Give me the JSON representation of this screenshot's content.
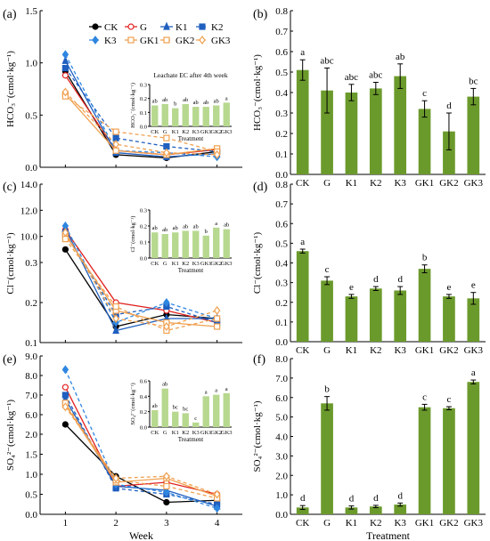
{
  "panel_letters": [
    "(a)",
    "(b)",
    "(c)",
    "(d)",
    "(e)",
    "(f)"
  ],
  "colors": {
    "CK": "#000000",
    "G": "#e0221f",
    "K1": "#1f5fbf",
    "K2": "#1f5fbf",
    "K3": "#2e86e0",
    "GK1": "#f0a050",
    "GK2": "#f0a050",
    "GK3": "#f0a050",
    "bar": "#6b9a2c",
    "inset_bar": "#b7d88f",
    "axis": "#000000"
  },
  "legend": [
    "CK",
    "G",
    "K1",
    "K2",
    "K3",
    "GK1",
    "GK2",
    "GK3"
  ],
  "inset_title_a": "Leachate EC after 4th week",
  "chart_data": [
    {
      "id": "a",
      "type": "line",
      "ylabel": "HCO₃⁻(cmol·kg⁻¹)",
      "x": [
        1,
        2,
        3,
        4
      ],
      "xlim": [
        0.5,
        4.5
      ],
      "ylim": [
        0,
        1.5
      ],
      "yticks": [
        "0.0",
        "0.5",
        "1.0",
        "1.5"
      ],
      "series": [
        {
          "name": "CK",
          "values": [
            0.92,
            0.12,
            0.09,
            0.15
          ]
        },
        {
          "name": "G",
          "values": [
            0.88,
            0.16,
            0.12,
            0.17
          ]
        },
        {
          "name": "K1",
          "values": [
            1.02,
            0.14,
            0.1,
            0.13
          ]
        },
        {
          "name": "K2",
          "values": [
            0.95,
            0.28,
            0.2,
            0.15
          ]
        },
        {
          "name": "K3",
          "values": [
            1.08,
            0.16,
            0.14,
            0.1
          ]
        },
        {
          "name": "GK1",
          "values": [
            0.7,
            0.16,
            0.12,
            0.18
          ]
        },
        {
          "name": "GK2",
          "values": [
            0.68,
            0.34,
            0.28,
            0.15
          ]
        },
        {
          "name": "GK3",
          "values": [
            0.72,
            0.22,
            0.14,
            0.12
          ]
        }
      ],
      "inset": {
        "title": "Leachate EC after 4th week",
        "ylabel": "HCO₃⁻(cmol·kg⁻¹)",
        "xlabel": "Treatment",
        "categories": [
          "CK",
          "G",
          "K1",
          "K2",
          "K3",
          "GK1",
          "GK2",
          "GK3"
        ],
        "values": [
          0.15,
          0.16,
          0.13,
          0.16,
          0.14,
          0.14,
          0.15,
          0.17
        ],
        "letters": [
          "ab",
          "ab",
          "b",
          "ab",
          "ab",
          "ab",
          "ab",
          "a"
        ],
        "ylim": [
          0,
          0.3
        ],
        "yticks": [
          "0.0",
          "0.1",
          "0.2",
          "0.3"
        ]
      }
    },
    {
      "id": "b",
      "type": "bar",
      "ylabel": "HCO₃⁻(cmol·kg⁻¹)",
      "categories": [
        "CK",
        "G",
        "K1",
        "K2",
        "K3",
        "GK1",
        "GK2",
        "GK3"
      ],
      "values": [
        0.51,
        0.41,
        0.4,
        0.42,
        0.48,
        0.32,
        0.21,
        0.38
      ],
      "errors": [
        0.05,
        0.11,
        0.04,
        0.03,
        0.06,
        0.04,
        0.09,
        0.04
      ],
      "letters": [
        "a",
        "abc",
        "abc",
        "abc",
        "ab",
        "c",
        "d",
        "bc"
      ],
      "ylim": [
        0,
        0.8
      ],
      "yticks": [
        "0.0",
        "0.1",
        "0.2",
        "0.3",
        "0.4",
        "0.5",
        "0.6",
        "0.7",
        "0.8"
      ]
    },
    {
      "id": "c",
      "type": "line",
      "ylabel": "Cl⁻(cmol·kg⁻¹)",
      "x": [
        1,
        2,
        3,
        4
      ],
      "xlim": [
        0.5,
        4.5
      ],
      "broken_axis": true,
      "upper": {
        "ylim": [
          8.0,
          14.0
        ],
        "yticks": [
          "8.0",
          "10.0",
          "12.0",
          "14.0"
        ]
      },
      "lower": {
        "ylim": [
          0.1,
          0.3
        ],
        "yticks": [
          "0.1",
          "0.2",
          "0.3"
        ]
      },
      "series": [
        {
          "name": "CK",
          "values": [
            9.0,
            0.14,
            0.17,
            0.16
          ]
        },
        {
          "name": "G",
          "values": [
            10.5,
            0.2,
            0.18,
            0.15
          ]
        },
        {
          "name": "K1",
          "values": [
            10.6,
            0.13,
            0.16,
            0.16
          ]
        },
        {
          "name": "K2",
          "values": [
            10.2,
            0.17,
            0.19,
            0.15
          ]
        },
        {
          "name": "K3",
          "values": [
            10.8,
            0.15,
            0.2,
            0.16
          ]
        },
        {
          "name": "GK1",
          "values": [
            10.1,
            0.18,
            0.15,
            0.14
          ]
        },
        {
          "name": "GK2",
          "values": [
            9.8,
            0.19,
            0.13,
            0.16
          ]
        },
        {
          "name": "GK3",
          "values": [
            10.3,
            0.16,
            0.14,
            0.18
          ]
        }
      ],
      "inset": {
        "ylabel": "Cl⁻(cmol·kg⁻¹)",
        "xlabel": "Treatment",
        "categories": [
          "CK",
          "G",
          "K1",
          "K2",
          "K3",
          "GK1",
          "GK2",
          "GK3"
        ],
        "values": [
          0.16,
          0.15,
          0.16,
          0.17,
          0.17,
          0.14,
          0.19,
          0.18
        ],
        "letters": [
          "ab",
          "ab",
          "ab",
          "ab",
          "ab",
          "b",
          "a",
          "ab"
        ],
        "ylim": [
          0,
          0.3
        ],
        "yticks": [
          "0.0",
          "0.1",
          "0.2",
          "0.3"
        ]
      }
    },
    {
      "id": "d",
      "type": "bar",
      "ylabel": "Cl⁻(cmol·kg⁻¹)",
      "categories": [
        "CK",
        "G",
        "K1",
        "K2",
        "K3",
        "GK1",
        "GK2",
        "GK3"
      ],
      "values": [
        0.46,
        0.31,
        0.23,
        0.27,
        0.26,
        0.37,
        0.23,
        0.22
      ],
      "errors": [
        0.01,
        0.02,
        0.01,
        0.01,
        0.02,
        0.02,
        0.01,
        0.03
      ],
      "letters": [
        "a",
        "c",
        "e",
        "d",
        "d",
        "b",
        "e",
        "e"
      ],
      "ylim": [
        0,
        0.8
      ],
      "yticks": [
        "0.0",
        "0.1",
        "0.2",
        "0.3",
        "0.4",
        "0.5",
        "0.6",
        "0.7",
        "0.8"
      ]
    },
    {
      "id": "e",
      "type": "line",
      "ylabel": "SO₄²⁻(cmol·kg⁻¹)",
      "xlabel": "Week",
      "x": [
        1,
        2,
        3,
        4
      ],
      "xlim": [
        0.5,
        4.5
      ],
      "xticks": [
        "1",
        "2",
        "3",
        "4"
      ],
      "broken_axis": true,
      "upper": {
        "ylim": [
          5.0,
          9.0
        ],
        "yticks": [
          "5.0",
          "6.0",
          "7.0",
          "8.0",
          "9.0"
        ]
      },
      "lower": {
        "ylim": [
          0.0,
          2.0
        ],
        "yticks": [
          "0.0",
          "0.5",
          "1.0",
          "1.5",
          "2.0"
        ]
      },
      "series": [
        {
          "name": "CK",
          "values": [
            5.5,
            0.95,
            0.3,
            0.35
          ]
        },
        {
          "name": "G",
          "values": [
            7.4,
            0.7,
            0.8,
            0.5
          ]
        },
        {
          "name": "K1",
          "values": [
            6.8,
            0.7,
            0.6,
            0.2
          ]
        },
        {
          "name": "K2",
          "values": [
            7.0,
            0.65,
            0.5,
            0.25
          ]
        },
        {
          "name": "K3",
          "values": [
            8.3,
            0.75,
            0.55,
            0.15
          ]
        },
        {
          "name": "GK1",
          "values": [
            6.5,
            0.8,
            0.9,
            0.45
          ]
        },
        {
          "name": "GK2",
          "values": [
            6.6,
            0.85,
            0.7,
            0.4
          ]
        },
        {
          "name": "GK3",
          "values": [
            6.4,
            0.9,
            0.95,
            0.5
          ]
        }
      ],
      "inset": {
        "ylabel": "SO₄²⁻(cmol·kg⁻¹)",
        "xlabel": "Treatment",
        "categories": [
          "CK",
          "G",
          "K1",
          "K2",
          "K3",
          "GK1",
          "GK2",
          "GK3"
        ],
        "values": [
          0.22,
          0.5,
          0.2,
          0.18,
          0.06,
          0.4,
          0.42,
          0.44
        ],
        "letters": [
          "ab",
          "ab",
          "bc",
          "bc",
          "c",
          "a",
          "a",
          "a"
        ],
        "ylim": [
          0,
          0.6
        ],
        "yticks": [
          "0.0",
          "0.2",
          "0.4",
          "0.6"
        ]
      }
    },
    {
      "id": "f",
      "type": "bar",
      "ylabel": "SO₄²⁻(cmol·kg⁻¹)",
      "xlabel": "Treatment",
      "categories": [
        "CK",
        "G",
        "K1",
        "K2",
        "K3",
        "GK1",
        "GK2",
        "GK3"
      ],
      "values": [
        0.35,
        5.7,
        0.35,
        0.4,
        0.5,
        5.5,
        5.45,
        6.8
      ],
      "errors": [
        0.1,
        0.35,
        0.08,
        0.06,
        0.08,
        0.15,
        0.08,
        0.1
      ],
      "letters": [
        "d",
        "b",
        "d",
        "d",
        "d",
        "c",
        "c",
        "a"
      ],
      "ylim": [
        0,
        8.0
      ],
      "yticks": [
        "0.0",
        "1.0",
        "2.0",
        "3.0",
        "4.0",
        "5.0",
        "6.0",
        "7.0",
        "8.0"
      ]
    }
  ]
}
